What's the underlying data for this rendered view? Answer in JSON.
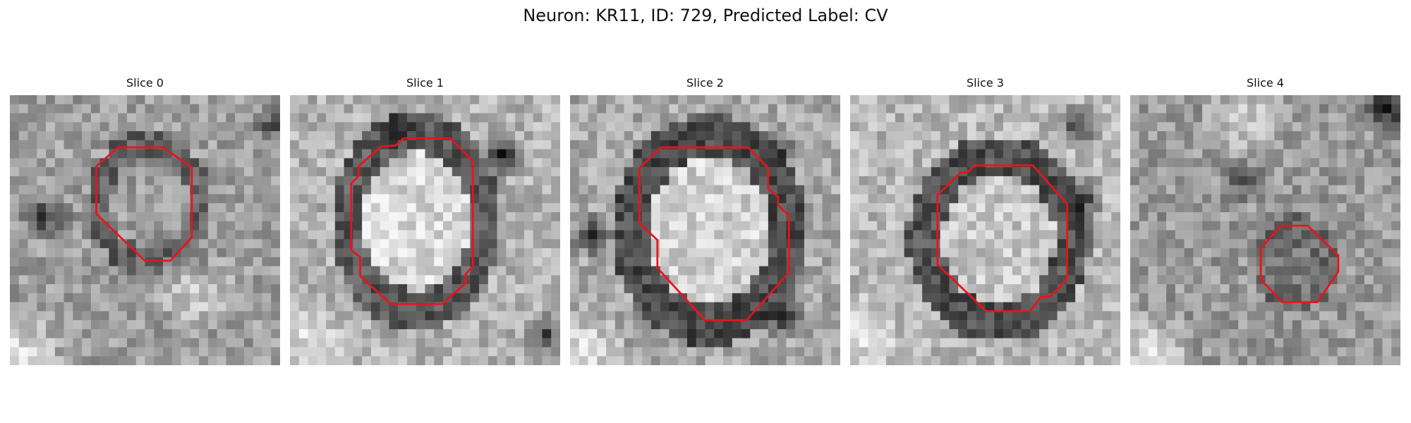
{
  "figure": {
    "title": "Neuron: KR11, ID: 729, Predicted Label: CV",
    "contour_color": "#e8141c"
  },
  "panels": [
    {
      "title": "Slice 0"
    },
    {
      "title": "Slice 1"
    },
    {
      "title": "Slice 2"
    },
    {
      "title": "Slice 3"
    },
    {
      "title": "Slice 4"
    }
  ]
}
